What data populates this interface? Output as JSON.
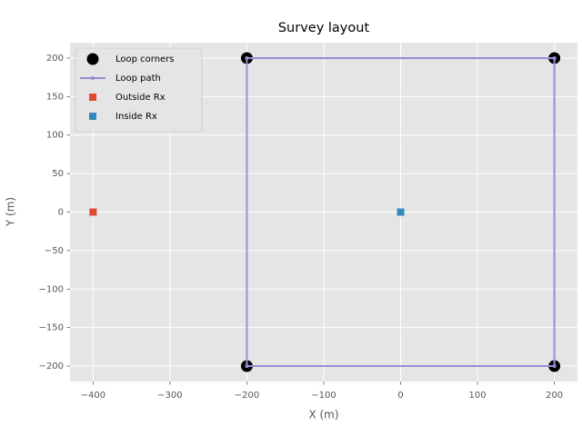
{
  "chart_data": {
    "type": "scatter",
    "title": "Survey layout",
    "x_label": "X (m)",
    "y_label": "Y (m)",
    "xlim": [
      -430,
      230
    ],
    "ylim": [
      -220,
      220
    ],
    "xticks": [
      {
        "value": -400,
        "label": "−400"
      },
      {
        "value": -300,
        "label": "−300"
      },
      {
        "value": -200,
        "label": "−200"
      },
      {
        "value": -100,
        "label": "−100"
      },
      0,
      100,
      200
    ],
    "yticks": [
      {
        "value": -200,
        "label": "−200"
      },
      {
        "value": -150,
        "label": "−150"
      },
      {
        "value": -100,
        "label": "−100"
      },
      {
        "value": -50,
        "label": "−50"
      },
      0,
      50,
      100,
      150,
      200
    ],
    "grid": true,
    "legend": "upper left",
    "series": [
      {
        "name": "Loop corners",
        "color": "#000000",
        "marker": "circle",
        "x": [
          -200,
          200,
          200,
          -200
        ],
        "values": [
          -200,
          -200,
          200,
          200
        ]
      },
      {
        "name": "Loop path",
        "color": "#988ED5",
        "marker": "dot",
        "line": true,
        "x": [
          -200,
          200,
          200,
          -200,
          -200
        ],
        "values": [
          -200,
          -200,
          200,
          200,
          -200
        ]
      },
      {
        "name": "Outside Rx",
        "color": "#E24A33",
        "marker": "square",
        "x": [
          -400
        ],
        "values": [
          0
        ]
      },
      {
        "name": "Inside Rx",
        "color": "#348ABD",
        "marker": "square",
        "x": [
          0
        ],
        "values": [
          0
        ]
      }
    ]
  }
}
